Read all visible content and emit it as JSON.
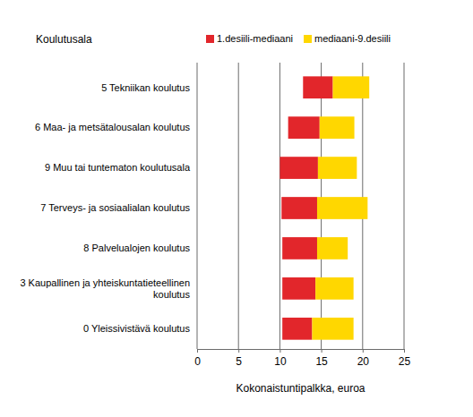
{
  "chart_data": {
    "type": "bar",
    "orientation": "horizontal",
    "y_label": "Koulutusala",
    "x_label": "Kokonaistuntipalkka, euroa",
    "categories": [
      "5 Tekniikan koulutus",
      "6 Maa- ja metsätalousalan koulutus",
      "9 Muu tai tuntematon koulutusala",
      "7 Terveys- ja sosiaalialan koulutus",
      "8 Palvelualojen koulutus",
      "3 Kaupallinen ja yhteiskuntatieteellinen koulutus",
      "0 Yleissivistävä koulutus"
    ],
    "series": [
      {
        "name": "1.desiili-mediaani",
        "color": "#e2262b",
        "values": [
          [
            12.8,
            16.4
          ],
          [
            11.0,
            14.8
          ],
          [
            10.0,
            14.6
          ],
          [
            10.2,
            14.5
          ],
          [
            10.3,
            14.5
          ],
          [
            10.3,
            14.3
          ],
          [
            10.3,
            13.9
          ]
        ]
      },
      {
        "name": "mediaani-9.desiili",
        "color": "#ffd700",
        "values": [
          [
            16.4,
            20.8
          ],
          [
            14.8,
            19.0
          ],
          [
            14.6,
            19.3
          ],
          [
            14.5,
            20.6
          ],
          [
            14.5,
            18.2
          ],
          [
            14.3,
            18.9
          ],
          [
            13.9,
            18.9
          ]
        ]
      }
    ],
    "xlim": [
      0,
      25
    ],
    "xticks": [
      0,
      5,
      10,
      15,
      20,
      25
    ],
    "grid": true,
    "legend": "top"
  }
}
